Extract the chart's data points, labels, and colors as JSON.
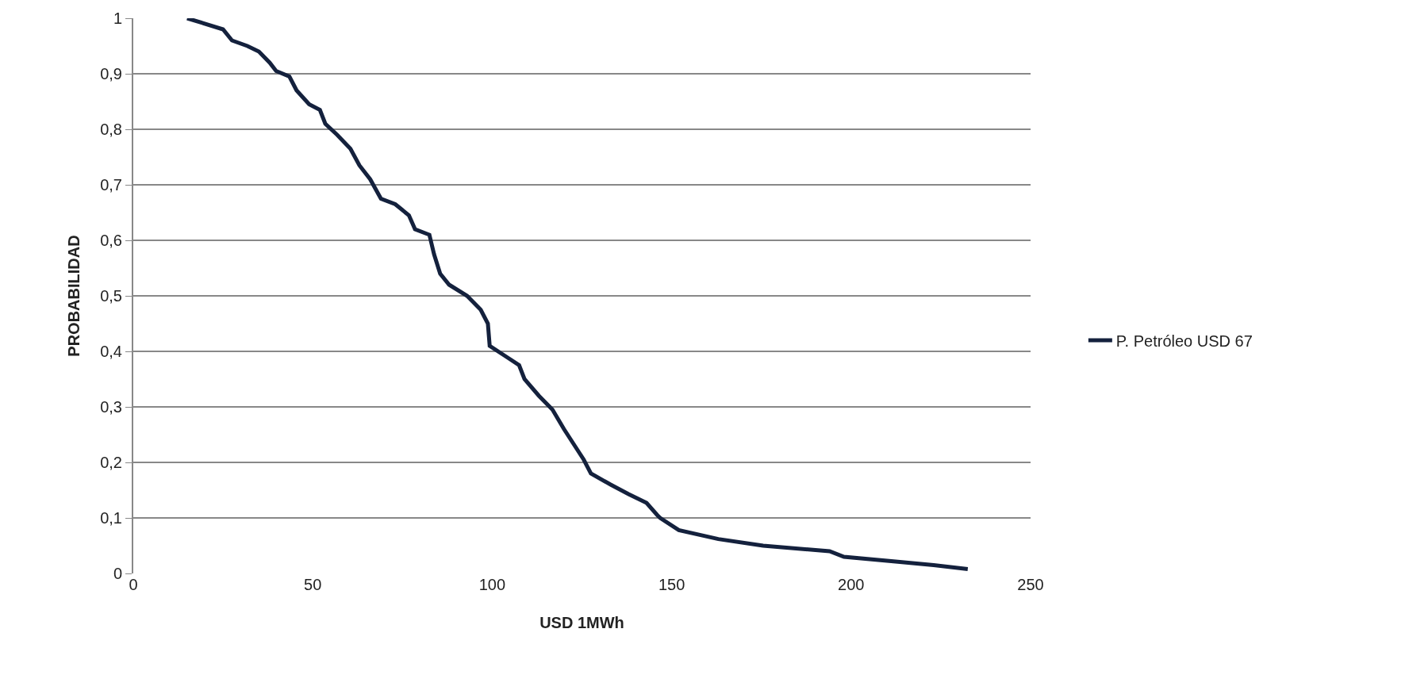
{
  "chart_data": {
    "type": "line",
    "xlabel": "USD 1MWh",
    "ylabel": "PROBABILIDAD",
    "xlim": [
      0,
      250
    ],
    "xticks": [
      0,
      50,
      100,
      150,
      200,
      250
    ],
    "ylim": [
      0,
      1
    ],
    "yticks": [
      {
        "value": 0,
        "label": "0"
      },
      {
        "value": 0.1,
        "label": "0,1"
      },
      {
        "value": 0.2,
        "label": "0,2"
      },
      {
        "value": 0.3,
        "label": "0,3"
      },
      {
        "value": 0.4,
        "label": "0,4"
      },
      {
        "value": 0.5,
        "label": "0,5"
      },
      {
        "value": 0.6,
        "label": "0,6"
      },
      {
        "value": 0.7,
        "label": "0,7"
      },
      {
        "value": 0.8,
        "label": "0,8"
      },
      {
        "value": 0.9,
        "label": "0,9"
      },
      {
        "value": 1,
        "label": "1"
      }
    ],
    "grid": "y",
    "legend": "right",
    "marker": "none",
    "line_style": "solid",
    "x": [
      15,
      25,
      27.5,
      31.8,
      35,
      38,
      39.8,
      43.5,
      45.5,
      49,
      52,
      53.5,
      56.8,
      60.5,
      63,
      66,
      69,
      73,
      76.8,
      78.5,
      82.5,
      83.8,
      85.5,
      88,
      93,
      96.8,
      98.8,
      99.3,
      104,
      107.5,
      109,
      113,
      116.8,
      120,
      123,
      125.5,
      127.5,
      133,
      138,
      143,
      146,
      146.8,
      152,
      163,
      175.5,
      194,
      198,
      213,
      223,
      232.5
    ],
    "series": [
      {
        "name": "P. Petróleo USD 67",
        "color": "#14213d",
        "values": [
          1.0,
          0.98,
          0.96,
          0.95,
          0.94,
          0.92,
          0.905,
          0.895,
          0.87,
          0.845,
          0.835,
          0.81,
          0.79,
          0.765,
          0.735,
          0.71,
          0.675,
          0.665,
          0.645,
          0.62,
          0.61,
          0.575,
          0.54,
          0.52,
          0.5,
          0.475,
          0.45,
          0.41,
          0.39,
          0.375,
          0.35,
          0.32,
          0.295,
          0.26,
          0.23,
          0.205,
          0.18,
          0.16,
          0.143,
          0.127,
          0.105,
          0.1,
          0.078,
          0.062,
          0.05,
          0.04,
          0.03,
          0.021,
          0.015,
          0.008
        ]
      }
    ]
  }
}
